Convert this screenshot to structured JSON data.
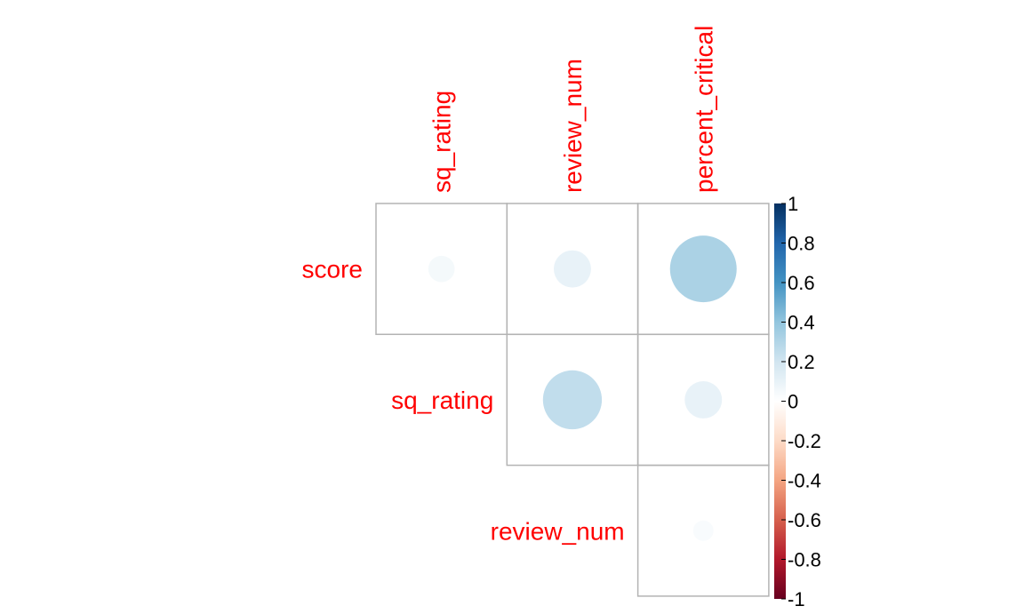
{
  "chart_data": {
    "type": "heatmap",
    "subtype": "correlation-circle-upper",
    "title": "",
    "row_labels": [
      "score",
      "sq_rating",
      "review_num"
    ],
    "col_labels": [
      "sq_rating",
      "review_num",
      "percent_critical"
    ],
    "cells": [
      {
        "row": "score",
        "col": "sq_rating",
        "value": 0.05
      },
      {
        "row": "score",
        "col": "review_num",
        "value": 0.1
      },
      {
        "row": "score",
        "col": "percent_critical",
        "value": 0.32
      },
      {
        "row": "sq_rating",
        "col": "review_num",
        "value": 0.25
      },
      {
        "row": "sq_rating",
        "col": "percent_critical",
        "value": 0.1
      },
      {
        "row": "review_num",
        "col": "percent_critical",
        "value": 0.03
      }
    ],
    "colorbar": {
      "range": [
        -1,
        1
      ],
      "ticks": [
        "1",
        "0.8",
        "0.6",
        "0.4",
        "0.2",
        "0",
        "-0.2",
        "-0.4",
        "-0.6",
        "-0.8",
        "-1"
      ],
      "colors": [
        "#67001F",
        "#B2182B",
        "#D6604D",
        "#F4A582",
        "#FDDBC7",
        "#FFFFFF",
        "#D1E5F0",
        "#92C5DE",
        "#4393C3",
        "#2166AC",
        "#053061"
      ]
    },
    "label_color": "#FF0000",
    "grid_color": "#B3B3B3"
  }
}
